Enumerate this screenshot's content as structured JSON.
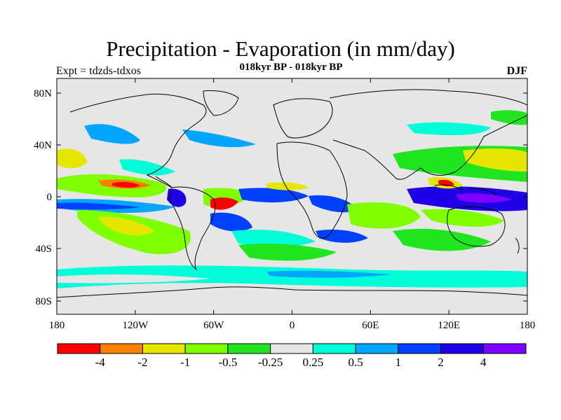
{
  "title": "Precipitation - Evaporation (in mm/day)",
  "subtitle": "018kyr BP - 018kyr BP",
  "left_label": "Expt = tdzds-tdxos",
  "right_label": "DJF",
  "y_ticks": [
    "80N",
    "40N",
    "0",
    "40S",
    "80S"
  ],
  "x_ticks": [
    "180",
    "120W",
    "60W",
    "0",
    "60E",
    "120E",
    "180"
  ],
  "colorbar": {
    "colors": [
      "#ff0000",
      "#ff8000",
      "#e6e600",
      "#80ff00",
      "#20e620",
      "#e6e6e6",
      "#00ffd9",
      "#00a6ff",
      "#0040ff",
      "#2000e6",
      "#8000ff"
    ],
    "labels": [
      "-4",
      "-2",
      "-1",
      "-0.5",
      "-0.25",
      "0.25",
      "0.5",
      "1",
      "2",
      "4"
    ]
  },
  "map": {
    "background": "#e6e6e6",
    "coast_color": "#000000"
  }
}
